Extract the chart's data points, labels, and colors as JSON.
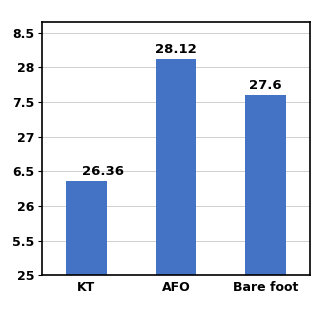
{
  "categories": [
    "KT",
    "AFO",
    "Bare foot"
  ],
  "values": [
    26.36,
    28.12,
    27.6
  ],
  "bar_color": "#4472C4",
  "value_labels": [
    "26.36",
    "28.12",
    "27.6"
  ],
  "ylim": [
    25,
    28.65
  ],
  "yticks": [
    25,
    25.5,
    26,
    26.5,
    27,
    27.5,
    28,
    28.5
  ],
  "ytick_labels": [
    "25",
    "5.5",
    "26",
    "6.5",
    "27",
    "7.5",
    "28",
    "8.5"
  ],
  "background_color": "#ffffff",
  "bar_width": 0.45,
  "label_fontsize": 9.5,
  "tick_fontsize": 9.0,
  "value_label_fontsize": 9.5
}
